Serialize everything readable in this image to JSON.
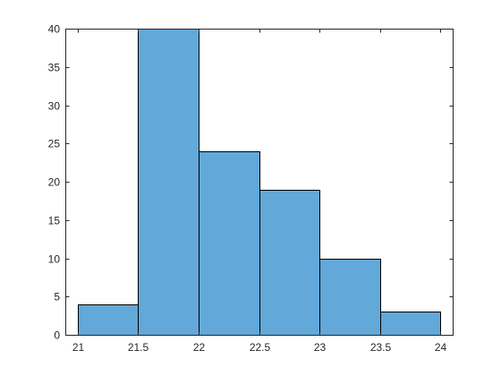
{
  "chart_data": {
    "type": "bar",
    "title": "",
    "xlabel": "",
    "ylabel": "",
    "bin_edges": [
      21,
      21.5,
      22,
      22.5,
      23,
      23.5,
      24
    ],
    "values": [
      4,
      40,
      24,
      19,
      10,
      3
    ],
    "xlim": [
      20.9,
      24.1
    ],
    "ylim": [
      0,
      40
    ],
    "x_ticks": [
      21,
      21.5,
      22,
      22.5,
      23,
      23.5,
      24
    ],
    "x_tick_labels": [
      "21",
      "21.5",
      "22",
      "22.5",
      "23",
      "23.5",
      "24"
    ],
    "y_ticks": [
      0,
      5,
      10,
      15,
      20,
      25,
      30,
      35,
      40
    ],
    "y_tick_labels": [
      "0",
      "5",
      "10",
      "15",
      "20",
      "25",
      "30",
      "35",
      "40"
    ],
    "grid": false,
    "legend": "none",
    "bar_color": "#62a8d9",
    "edge_color": "#000000",
    "axis_color": "#262626"
  }
}
